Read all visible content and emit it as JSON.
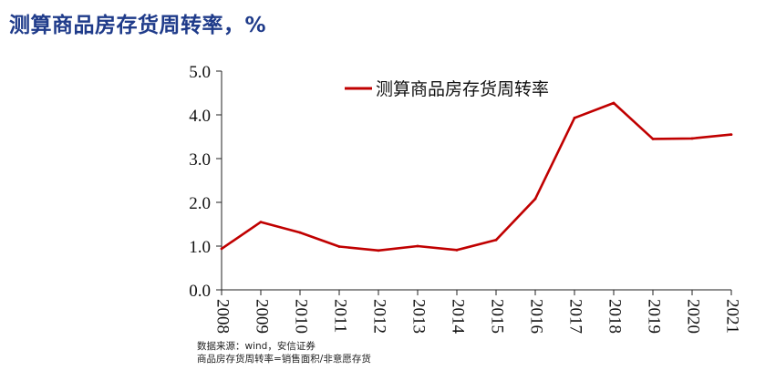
{
  "page_title": "测算商品房存货周转率，%",
  "chart_data": {
    "type": "line",
    "title": "",
    "xlabel": "",
    "ylabel": "",
    "x": [
      "2008",
      "2009",
      "2010",
      "2011",
      "2012",
      "2013",
      "2014",
      "2015",
      "2016",
      "2017",
      "2018",
      "2019",
      "2020",
      "2021"
    ],
    "series": [
      {
        "name": "测算商品房存货周转率",
        "values": [
          0.94,
          1.55,
          1.31,
          0.99,
          0.9,
          1.0,
          0.91,
          1.14,
          2.08,
          3.93,
          4.27,
          3.45,
          3.46,
          3.55
        ],
        "color": "#c00000"
      }
    ],
    "ylim": [
      0,
      5
    ],
    "yticks": [
      "0.0",
      "1.0",
      "2.0",
      "3.0",
      "4.0",
      "5.0"
    ],
    "legend_position": "top-center",
    "grid": false
  },
  "notes": [
    "数据来源：wind，安信证券",
    "商品房存货周转率=销售面积/非意愿存货"
  ]
}
